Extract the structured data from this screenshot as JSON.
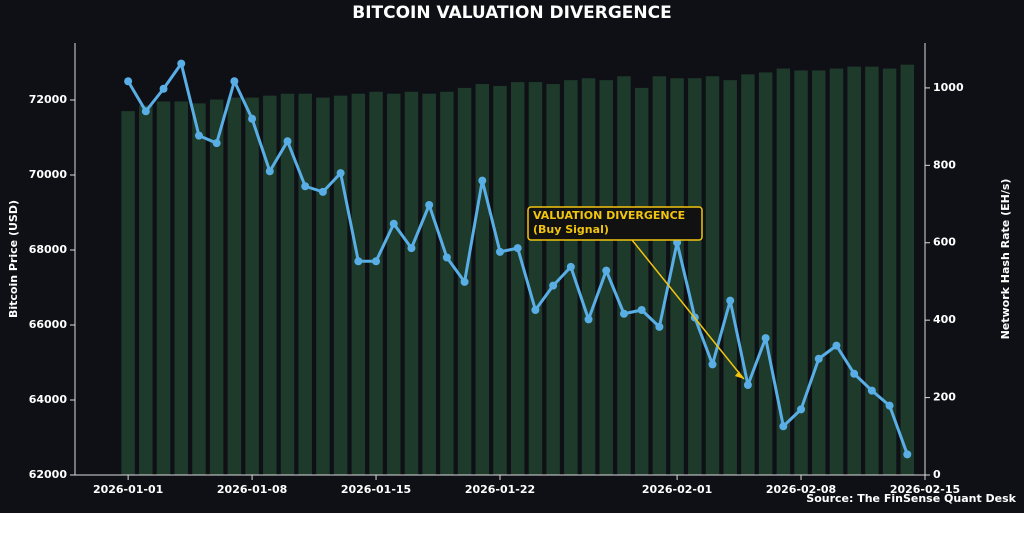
{
  "chart_data": {
    "type": "bar-line",
    "title": "BITCOIN VALUATION DIVERGENCE",
    "y_label": "Bitcoin Price (USD)",
    "y2_label": "Network Hash Rate (EH/s)",
    "source": "Source: The FinSense Quant Desk",
    "annotation": {
      "text": [
        "VALUATION DIVERGENCE",
        "(Buy Signal)"
      ],
      "color": "#f1c40f"
    },
    "x": [
      "2026-01-01",
      "2026-01-02",
      "2026-01-03",
      "2026-01-04",
      "2026-01-05",
      "2026-01-06",
      "2026-01-07",
      "2026-01-08",
      "2026-01-09",
      "2026-01-10",
      "2026-01-11",
      "2026-01-12",
      "2026-01-13",
      "2026-01-14",
      "2026-01-15",
      "2026-01-16",
      "2026-01-17",
      "2026-01-18",
      "2026-01-19",
      "2026-01-20",
      "2026-01-21",
      "2026-01-22",
      "2026-01-23",
      "2026-01-24",
      "2026-01-25",
      "2026-01-26",
      "2026-01-27",
      "2026-01-28",
      "2026-01-29",
      "2026-01-30",
      "2026-01-31",
      "2026-02-01",
      "2026-02-02",
      "2026-02-03",
      "2026-02-04",
      "2026-02-05",
      "2026-02-06",
      "2026-02-07",
      "2026-02-08",
      "2026-02-09",
      "2026-02-10",
      "2026-02-11",
      "2026-02-12",
      "2026-02-13",
      "2026-02-14"
    ],
    "xlim": [
      "2025-12-29",
      "2026-02-15"
    ],
    "xticks": [
      "2026-01-01",
      "2026-01-08",
      "2026-01-15",
      "2026-01-22",
      "2026-02-01",
      "2026-02-08",
      "2026-02-15"
    ],
    "ylim": [
      62000,
      73520
    ],
    "yticks": [
      62000,
      64000,
      66000,
      68000,
      70000,
      72000
    ],
    "y2lim": [
      0,
      1116
    ],
    "y2ticks": [
      0,
      200,
      400,
      600,
      800,
      1000
    ],
    "series": [
      {
        "name": "Network Hash Rate",
        "type": "bar",
        "axis": "y2",
        "color": "#1e3a2b",
        "values": [
          940,
          955,
          965,
          965,
          960,
          970,
          975,
          975,
          980,
          985,
          985,
          975,
          980,
          985,
          990,
          985,
          990,
          985,
          990,
          1000,
          1010,
          1005,
          1015,
          1015,
          1010,
          1020,
          1025,
          1020,
          1030,
          1000,
          1030,
          1025,
          1025,
          1030,
          1020,
          1035,
          1040,
          1050,
          1045,
          1045,
          1050,
          1055,
          1055,
          1050,
          1060
        ]
      },
      {
        "name": "Bitcoin Price",
        "type": "line",
        "axis": "y",
        "color": "#5aaee6",
        "values": [
          72500,
          71700,
          72300,
          72970,
          71050,
          70850,
          72500,
          71500,
          70100,
          70900,
          69700,
          69550,
          70050,
          67700,
          67700,
          68700,
          68050,
          69200,
          67800,
          67150,
          69850,
          67950,
          68050,
          66400,
          67050,
          67550,
          66150,
          67450,
          66300,
          66400,
          65950,
          68200,
          66200,
          64950,
          66650,
          64400,
          65650,
          63300,
          63750,
          65100,
          65450,
          64700,
          64250,
          63850,
          62550
        ]
      }
    ]
  }
}
